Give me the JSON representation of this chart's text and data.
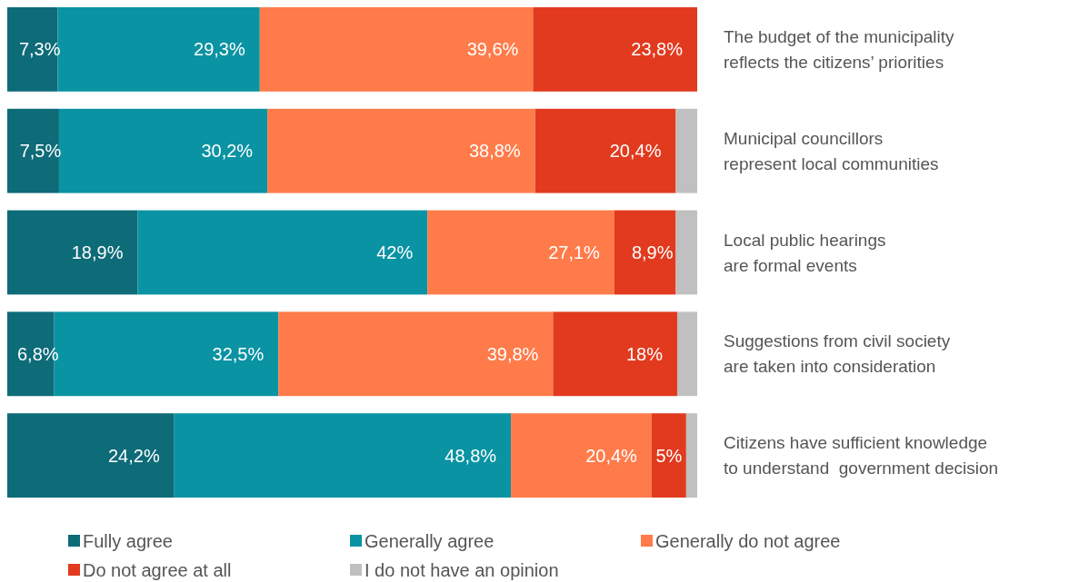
{
  "chart_data": {
    "type": "bar",
    "orientation": "horizontal",
    "stacked": true,
    "xlim": [
      0,
      100
    ],
    "tick_labels": false,
    "legend": "bottom",
    "categories": [
      "The budget of the municipality reflects the citizens’ priorities",
      "Municipal councillors represent local communities",
      "Local public hearings are formal events",
      "Suggestions from civil society are taken into consideration",
      "Citizens have sufficient knowledge to understand  government decision"
    ],
    "series": [
      {
        "name": "Fully agree",
        "color": "#0e6b78",
        "values": [
          7.3,
          7.5,
          18.9,
          6.8,
          24.2
        ],
        "value_labels": [
          "7,3%",
          "7,5%",
          "18,9%",
          "6,8%",
          "24,2%"
        ]
      },
      {
        "name": "Generally agree",
        "color": "#0a93a3",
        "values": [
          29.3,
          30.2,
          42,
          32.5,
          48.8
        ],
        "value_labels": [
          "29,3%",
          "30,2%",
          "42%",
          "32,5%",
          "48,8%"
        ]
      },
      {
        "name": "Generally do not agree",
        "color": "#ff7b4a",
        "values": [
          39.6,
          38.8,
          27.1,
          39.8,
          20.4
        ],
        "value_labels": [
          "39,6%",
          "38,8%",
          "27,1%",
          "39,8%",
          "20,4%"
        ]
      },
      {
        "name": "Do not agree at all",
        "color": "#e23a1f",
        "values": [
          23.8,
          20.4,
          8.9,
          18,
          5
        ],
        "value_labels": [
          "23,8%",
          "20,4%",
          "8,9%",
          "18%",
          "5%"
        ]
      },
      {
        "name": "I do not have an opinion",
        "color": "#c0c0c0",
        "values": [
          0,
          3.1,
          3.1,
          2.9,
          1.6
        ],
        "value_labels": [
          null,
          null,
          null,
          null,
          null
        ]
      }
    ]
  }
}
